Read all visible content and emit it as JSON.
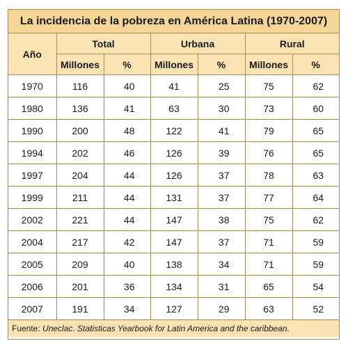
{
  "title": "La incidencia de la pobreza en América Latina (1970-2007)",
  "headers": {
    "year": "Año",
    "groups": [
      "Total",
      "Urbana",
      "Rural"
    ],
    "sub": [
      "Millones",
      "%",
      "Millones",
      "%",
      "Millones",
      "%"
    ]
  },
  "rows": [
    [
      "1970",
      "116",
      "40",
      "41",
      "25",
      "75",
      "62"
    ],
    [
      "1980",
      "136",
      "41",
      "63",
      "30",
      "73",
      "60"
    ],
    [
      "1990",
      "200",
      "48",
      "122",
      "41",
      "79",
      "65"
    ],
    [
      "1994",
      "202",
      "46",
      "126",
      "39",
      "76",
      "65"
    ],
    [
      "1997",
      "204",
      "44",
      "126",
      "37",
      "78",
      "63"
    ],
    [
      "1999",
      "211",
      "44",
      "131",
      "37",
      "77",
      "64"
    ],
    [
      "2002",
      "221",
      "44",
      "147",
      "38",
      "75",
      "62"
    ],
    [
      "2004",
      "217",
      "42",
      "147",
      "37",
      "71",
      "59"
    ],
    [
      "2005",
      "209",
      "40",
      "138",
      "34",
      "71",
      "59"
    ],
    [
      "2006",
      "201",
      "36",
      "134",
      "31",
      "65",
      "54"
    ],
    [
      "2007",
      "191",
      "34",
      "127",
      "29",
      "63",
      "52"
    ]
  ],
  "footer": {
    "label": "Fuente: ",
    "source": "Uneclac. Statisticas Yearbook for Latin America and the caribbean."
  },
  "colors": {
    "title_bg": "#f5d697",
    "header_bg": "#f9e3b3",
    "border": "#a88a52"
  }
}
